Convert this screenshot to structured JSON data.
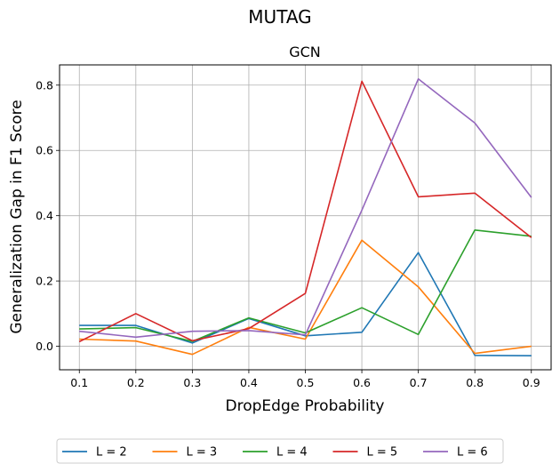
{
  "figure": {
    "suptitle": "MUTAG"
  },
  "chart_data": {
    "type": "line",
    "title": "GCN",
    "xlabel": "DropEdge Probability",
    "ylabel": "Generalization Gap in F1 Score",
    "x": [
      0.1,
      0.2,
      0.3,
      0.4,
      0.5,
      0.6,
      0.7,
      0.8,
      0.9
    ],
    "x_ticks": [
      "0.1",
      "0.2",
      "0.3",
      "0.4",
      "0.5",
      "0.6",
      "0.7",
      "0.8",
      "0.9"
    ],
    "y_ticks": [
      "0.0",
      "0.2",
      "0.4",
      "0.6",
      "0.8"
    ],
    "y_tick_values": [
      0.0,
      0.2,
      0.4,
      0.6,
      0.8
    ],
    "xlim": [
      0.065,
      0.935
    ],
    "ylim": [
      -0.072,
      0.862
    ],
    "grid": true,
    "legend_position": "bottom-center",
    "series": [
      {
        "name": "L = 2",
        "color": "#1f77b4",
        "values": [
          0.064,
          0.064,
          0.01,
          0.085,
          0.032,
          0.043,
          0.287,
          -0.028,
          -0.029
        ]
      },
      {
        "name": "L = 3",
        "color": "#ff7f0e",
        "values": [
          0.022,
          0.016,
          -0.025,
          0.058,
          0.022,
          0.325,
          0.182,
          -0.022,
          0.0
        ]
      },
      {
        "name": "L = 4",
        "color": "#2ca02c",
        "values": [
          0.053,
          0.057,
          0.015,
          0.087,
          0.041,
          0.118,
          0.036,
          0.356,
          0.337
        ]
      },
      {
        "name": "L = 5",
        "color": "#d62728",
        "values": [
          0.014,
          0.1,
          0.017,
          0.054,
          0.162,
          0.812,
          0.458,
          0.469,
          0.333
        ]
      },
      {
        "name": "L = 6",
        "color": "#9467bd",
        "values": [
          0.046,
          0.028,
          0.046,
          0.048,
          0.035,
          0.417,
          0.819,
          0.684,
          0.456
        ]
      }
    ]
  }
}
